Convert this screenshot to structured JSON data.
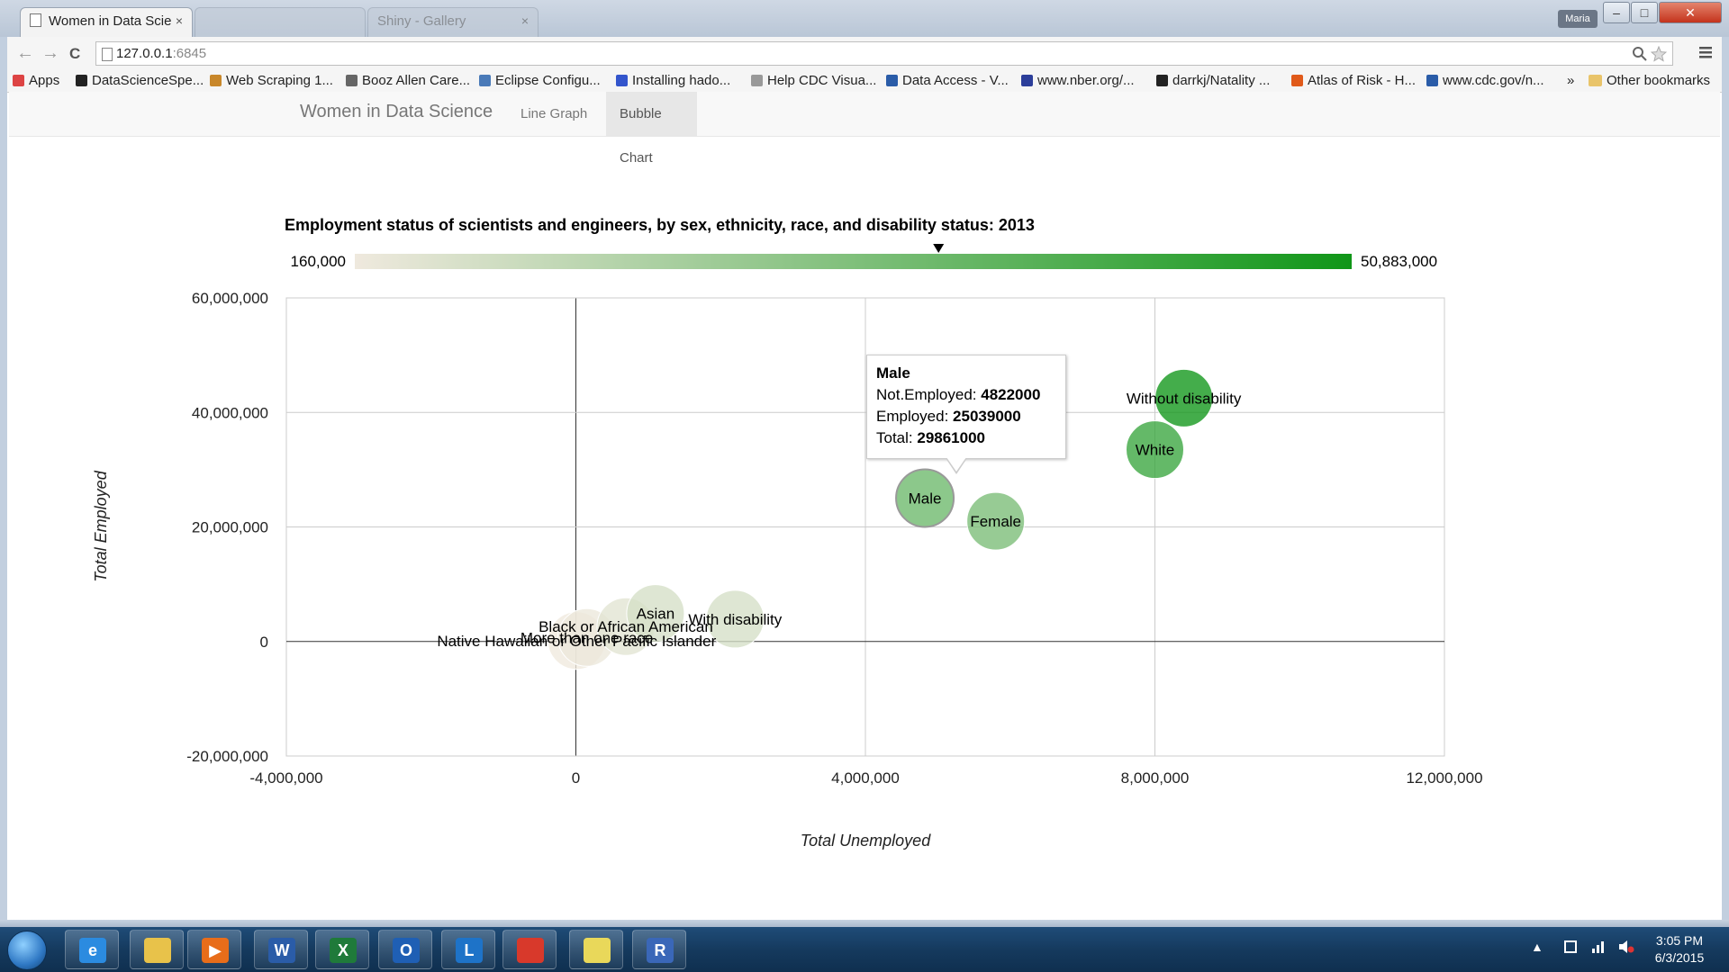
{
  "browser": {
    "tabs": [
      {
        "label": "Women in Data Scie",
        "close": "×"
      },
      {
        "label": "",
        "close": ""
      },
      {
        "label": "Shiny - Gallery",
        "close": "×"
      }
    ],
    "profile": "Maria",
    "window_controls": {
      "minimize": "‒",
      "maximize": "□",
      "close": "✕"
    },
    "url_host": "127.0.0.1",
    "url_port": ":6845",
    "nav": {
      "back": "←",
      "forward": "→",
      "reload": "C"
    },
    "bookmarks": [
      {
        "label": "Apps",
        "color": "#d44"
      },
      {
        "label": "DataScienceSpe...",
        "color": "#222"
      },
      {
        "label": "Web Scraping 1...",
        "color": "#c8872a"
      },
      {
        "label": "Booz Allen Care...",
        "color": "#666"
      },
      {
        "label": "Eclipse Configu...",
        "color": "#4a7ab8"
      },
      {
        "label": "Installing hado...",
        "color": "#3355cc"
      },
      {
        "label": "Help CDC Visua...",
        "color": "#999"
      },
      {
        "label": "Data Access - V...",
        "color": "#2a5ca8"
      },
      {
        "label": "www.nber.org/...",
        "color": "#2c3e9a"
      },
      {
        "label": "darrkj/Natality ...",
        "color": "#222"
      },
      {
        "label": "Atlas of Risk - H...",
        "color": "#e05a1a"
      },
      {
        "label": "www.cdc.gov/n...",
        "color": "#2a5ca8"
      }
    ],
    "more_bookmarks": "»",
    "other_bookmarks": "Other bookmarks"
  },
  "app": {
    "brand": "Women in Data Science",
    "tabs": [
      {
        "label": "Line Graph",
        "active": false
      },
      {
        "label": "Bubble Chart",
        "active": true
      }
    ]
  },
  "chart_data": {
    "type": "scatter",
    "title": "Employment status of scientists and engineers, by sex, ethnicity, race, and disability status: 2013",
    "xlabel": "Total Unemployed",
    "ylabel": "Total Employed",
    "xlim": [
      -4000000,
      12000000
    ],
    "ylim": [
      -20000000,
      60000000
    ],
    "xticks": [
      -4000000,
      0,
      4000000,
      8000000,
      12000000
    ],
    "yticks": [
      -20000000,
      0,
      20000000,
      40000000,
      60000000
    ],
    "xtick_labels": [
      "-4,000,000",
      "0",
      "4,000,000",
      "8,000,000",
      "12,000,000"
    ],
    "ytick_labels": [
      "-20,000,000",
      "0",
      "20,000,000",
      "40,000,000",
      "60,000,000"
    ],
    "grid": true,
    "color_scale": {
      "min": 160000,
      "max": 50883000,
      "min_label": "160,000",
      "max_label": "50,883,000",
      "min_color": "#efe9de",
      "max_color": "#109618",
      "marker_value": 29861000
    },
    "points": [
      {
        "name": "Native Hawaiian or Other Pacific Islander",
        "x": 10000,
        "y": 150000
      },
      {
        "name": "More than one race",
        "x": 150000,
        "y": 700000
      },
      {
        "name": "Black or African American",
        "x": 690000,
        "y": 2600000
      },
      {
        "name": "Asian",
        "x": 1100000,
        "y": 4900000
      },
      {
        "name": "With disability",
        "x": 2200000,
        "y": 3900000
      },
      {
        "name": "Male",
        "x": 4822000,
        "y": 25039000,
        "total": 29861000
      },
      {
        "name": "Female",
        "x": 5800000,
        "y": 21000000
      },
      {
        "name": "White",
        "x": 8000000,
        "y": 33500000
      },
      {
        "name": "Without disability",
        "x": 8400000,
        "y": 42500000
      }
    ],
    "tooltip": {
      "title": "Male",
      "lines": [
        {
          "label": "Not.Employed: ",
          "value": "4822000"
        },
        {
          "label": "Employed: ",
          "value": "25039000"
        },
        {
          "label": "Total: ",
          "value": "29861000"
        }
      ]
    }
  },
  "taskbar": {
    "apps": [
      {
        "name": "internet-explorer",
        "glyph": "e",
        "color": "#2b8be0"
      },
      {
        "name": "file-explorer",
        "glyph": "",
        "color": "#e8c24a"
      },
      {
        "name": "media-player",
        "glyph": "▶",
        "color": "#e86d1a"
      },
      {
        "name": "word",
        "glyph": "W",
        "color": "#2a5ca8"
      },
      {
        "name": "excel",
        "glyph": "X",
        "color": "#1f7a3a"
      },
      {
        "name": "outlook",
        "glyph": "O",
        "color": "#1f5fb4"
      },
      {
        "name": "lync",
        "glyph": "L",
        "color": "#1e73c8"
      },
      {
        "name": "chrome",
        "glyph": "",
        "color": "#d8392b"
      },
      {
        "name": "sticky-notes",
        "glyph": "",
        "color": "#e9d85a"
      },
      {
        "name": "r-gui",
        "glyph": "R",
        "color": "#3a67b8"
      }
    ],
    "time": "3:05 PM",
    "date": "6/3/2015",
    "tray_arrow": "▲"
  }
}
